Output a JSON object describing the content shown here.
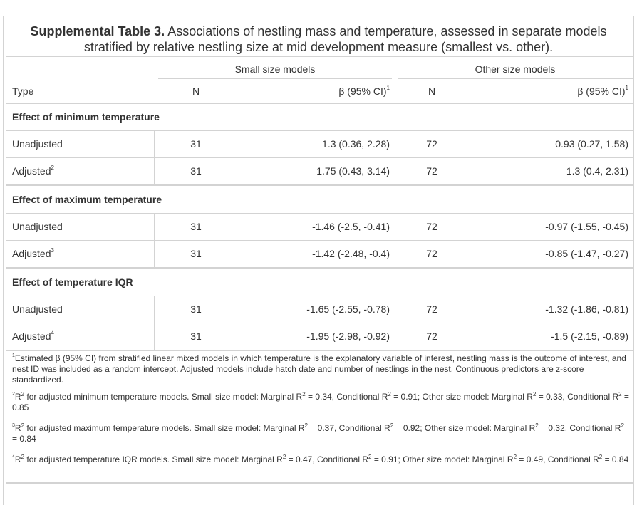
{
  "title": {
    "label": "Supplemental Table 3.",
    "text": "Associations of nestling mass and temperature, assessed in separate models stratified by relative nestling size at mid development measure (smallest vs. other)."
  },
  "spanners": {
    "small": "Small size models",
    "other": "Other size models"
  },
  "columns": {
    "type": "Type",
    "n": "N",
    "beta": "β (95% CI)",
    "beta_note": "1"
  },
  "groups": [
    {
      "label": "Effect of minimum temperature",
      "rows": [
        {
          "type": "Unadjusted",
          "note": "",
          "n_small": "31",
          "beta_small": "1.3 (0.36, 2.28)",
          "n_other": "72",
          "beta_other": "0.93 (0.27, 1.58)"
        },
        {
          "type": "Adjusted",
          "note": "2",
          "n_small": "31",
          "beta_small": "1.75 (0.43, 3.14)",
          "n_other": "72",
          "beta_other": "1.3 (0.4, 2.31)"
        }
      ]
    },
    {
      "label": "Effect of maximum temperature",
      "rows": [
        {
          "type": "Unadjusted",
          "note": "",
          "n_small": "31",
          "beta_small": "-1.46 (-2.5, -0.41)",
          "n_other": "72",
          "beta_other": "-0.97 (-1.55, -0.45)"
        },
        {
          "type": "Adjusted",
          "note": "3",
          "n_small": "31",
          "beta_small": "-1.42 (-2.48, -0.4)",
          "n_other": "72",
          "beta_other": "-0.85 (-1.47, -0.27)"
        }
      ]
    },
    {
      "label": "Effect of temperature IQR",
      "rows": [
        {
          "type": "Unadjusted",
          "note": "",
          "n_small": "31",
          "beta_small": "-1.65 (-2.55, -0.78)",
          "n_other": "72",
          "beta_other": "-1.32 (-1.86, -0.81)"
        },
        {
          "type": "Adjusted",
          "note": "4",
          "n_small": "31",
          "beta_small": "-1.95 (-2.98, -0.92)",
          "n_other": "72",
          "beta_other": "-1.5 (-2.15, -0.89)"
        }
      ]
    }
  ],
  "footnotes": [
    {
      "mark": "1",
      "segments": [
        "Estimated β (95% CI) from stratified linear mixed models in which temperature is the explanatory variable of interest, nestling mass is the outcome of interest, and nest ID was included as a random intercept. Adjusted models include hatch date and number of nestlings in the nest. Continuous predictors are z-score standardized."
      ]
    },
    {
      "mark": "2",
      "segments": [
        "R",
        "2",
        " for adjusted minimum temperature models. Small size model: Marginal R",
        "2",
        " = 0.34, Conditional R",
        "2",
        " = 0.91; Other size model: Marginal R",
        "2",
        " = 0.33, Conditional R",
        "2",
        " = 0.85"
      ]
    },
    {
      "mark": "3",
      "segments": [
        "R",
        "2",
        " for adjusted maximum temperature models. Small size model: Marginal R",
        "2",
        " = 0.37, Conditional R",
        "2",
        " = 0.92; Other size model: Marginal R",
        "2",
        " = 0.32, Conditional R",
        "2",
        " = 0.84"
      ]
    },
    {
      "mark": "4",
      "segments": [
        "R",
        "2",
        " for adjusted temperature IQR models. Small size model: Marginal R",
        "2",
        " = 0.47, Conditional R",
        "2",
        " = 0.91; Other size model: Marginal R",
        "2",
        " = 0.49, Conditional R",
        "2",
        " = 0.84"
      ]
    }
  ]
}
